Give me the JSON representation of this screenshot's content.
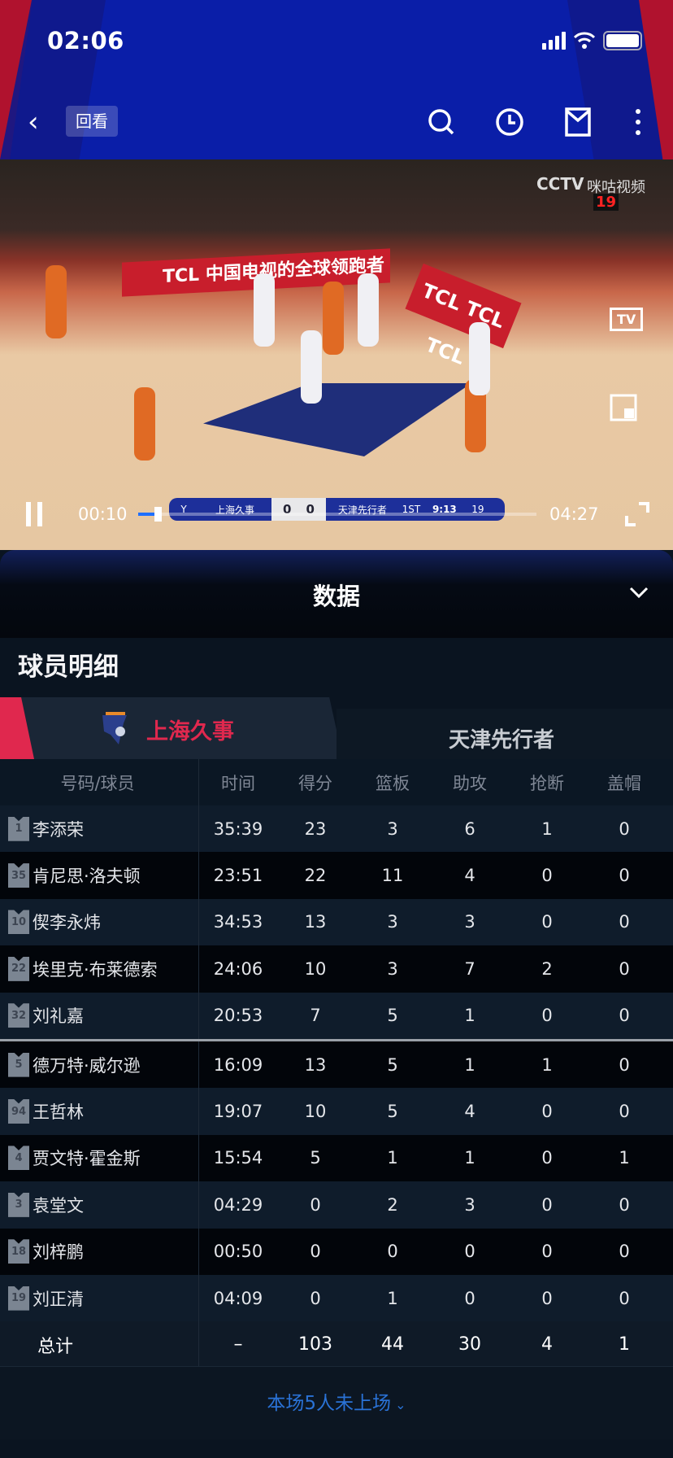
{
  "status_bar": {
    "time": "02:06"
  },
  "nav": {
    "back_icon": "chevron-left-icon",
    "replay_label": "回看",
    "icons": [
      "search-icon",
      "clock-icon",
      "mail-icon",
      "more-vertical-icon"
    ]
  },
  "video": {
    "elapsed": "00:10",
    "duration": "04:27",
    "progress_fraction": 0.04,
    "overlay": {
      "broadcaster": "CCTV",
      "platform": "咪咕视频",
      "banner_text": "TCL 中国电视的全球领跑者",
      "board_text": "TCL TCL TCL",
      "tv_button": "TV",
      "shot_clock": "19",
      "scorebug": {
        "home": "上海久事",
        "home_score": "0",
        "away_score": "0",
        "away": "天津先行者",
        "period": "1ST",
        "clock": "9:13",
        "shot_clock": "19"
      }
    }
  },
  "panel": {
    "title": "数据",
    "section_title": "球员明细",
    "tabs": [
      {
        "label": "上海久事",
        "active": true,
        "color": "#e0284e"
      },
      {
        "label": "天津先行者",
        "active": false
      }
    ],
    "columns": [
      "号码/球员",
      "时间",
      "得分",
      "篮板",
      "助攻",
      "抢断",
      "盖帽"
    ],
    "players": [
      {
        "number": "1",
        "name": "李添荣",
        "time": "35:39",
        "pts": "23",
        "reb": "3",
        "ast": "6",
        "stl": "1",
        "blk": "0"
      },
      {
        "number": "35",
        "name": "肯尼思·洛夫顿",
        "time": "23:51",
        "pts": "22",
        "reb": "11",
        "ast": "4",
        "stl": "0",
        "blk": "0"
      },
      {
        "number": "10",
        "name": "偰李永炜",
        "time": "34:53",
        "pts": "13",
        "reb": "3",
        "ast": "3",
        "stl": "0",
        "blk": "0"
      },
      {
        "number": "22",
        "name": "埃里克·布莱德索",
        "time": "24:06",
        "pts": "10",
        "reb": "3",
        "ast": "7",
        "stl": "2",
        "blk": "0"
      },
      {
        "number": "32",
        "name": "刘礼嘉",
        "time": "20:53",
        "pts": "7",
        "reb": "5",
        "ast": "1",
        "stl": "0",
        "blk": "0"
      },
      {
        "number": "5",
        "name": "德万特·威尔逊",
        "time": "16:09",
        "pts": "13",
        "reb": "5",
        "ast": "1",
        "stl": "1",
        "blk": "0"
      },
      {
        "number": "94",
        "name": "王哲林",
        "time": "19:07",
        "pts": "10",
        "reb": "5",
        "ast": "4",
        "stl": "0",
        "blk": "0"
      },
      {
        "number": "4",
        "name": "贾文特·霍金斯",
        "time": "15:54",
        "pts": "5",
        "reb": "1",
        "ast": "1",
        "stl": "0",
        "blk": "1"
      },
      {
        "number": "3",
        "name": "袁堂文",
        "time": "04:29",
        "pts": "0",
        "reb": "2",
        "ast": "3",
        "stl": "0",
        "blk": "0"
      },
      {
        "number": "18",
        "name": "刘梓鹏",
        "time": "00:50",
        "pts": "0",
        "reb": "0",
        "ast": "0",
        "stl": "0",
        "blk": "0"
      },
      {
        "number": "19",
        "name": "刘正清",
        "time": "04:09",
        "pts": "0",
        "reb": "1",
        "ast": "0",
        "stl": "0",
        "blk": "0"
      }
    ],
    "total": {
      "label": "总计",
      "time": "–",
      "pts": "103",
      "reb": "44",
      "ast": "30",
      "stl": "4",
      "blk": "1"
    },
    "footer_link": "本场5人未上场"
  }
}
